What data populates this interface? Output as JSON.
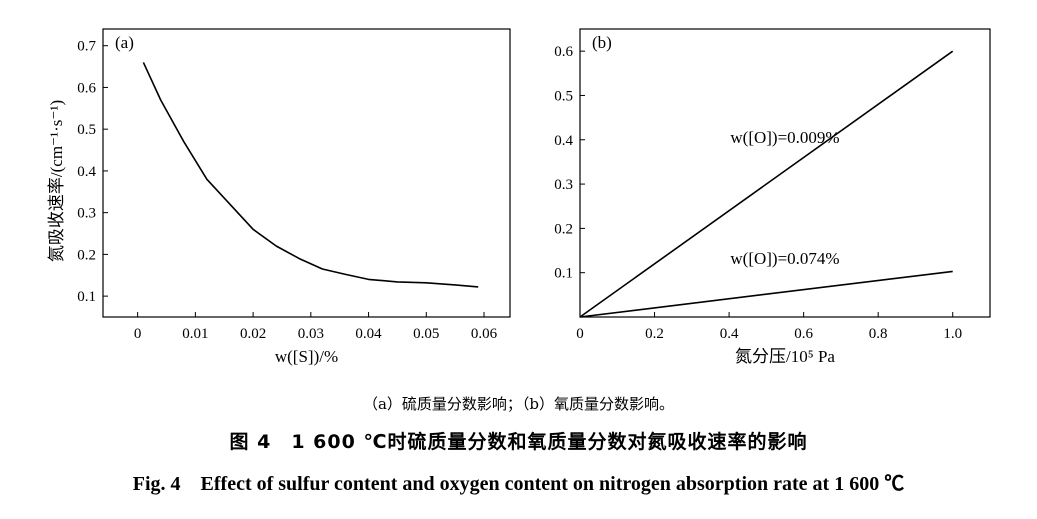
{
  "chart_data": [
    {
      "type": "line",
      "panel_label": "(a)",
      "xlabel": "w([S])/%",
      "ylabel": "氮吸收速率/(cm⁻¹·s⁻¹)",
      "xlim": [
        -0.006,
        0.0645
      ],
      "ylim": [
        0.05,
        0.74
      ],
      "xticks": [
        0,
        0.01,
        0.02,
        0.03,
        0.04,
        0.05,
        0.06
      ],
      "xtick_labels": [
        "0",
        "0.01",
        "0.02",
        "0.03",
        "0.04",
        "0.05",
        "0.06"
      ],
      "yticks": [
        0.1,
        0.2,
        0.3,
        0.4,
        0.5,
        0.6,
        0.7
      ],
      "ytick_labels": [
        "0.1",
        "0.2",
        "0.3",
        "0.4",
        "0.5",
        "0.6",
        "0.7"
      ],
      "grid": false,
      "series": [
        {
          "x": [
            0.001,
            0.004,
            0.008,
            0.012,
            0.016,
            0.02,
            0.024,
            0.028,
            0.032,
            0.036,
            0.04,
            0.045,
            0.05,
            0.055,
            0.059
          ],
          "y": [
            0.66,
            0.57,
            0.47,
            0.38,
            0.32,
            0.26,
            0.22,
            0.19,
            0.165,
            0.152,
            0.14,
            0.134,
            0.132,
            0.127,
            0.122
          ]
        }
      ]
    },
    {
      "type": "line",
      "panel_label": "(b)",
      "xlabel": "氮分压/10⁵ Pa",
      "ylabel": "",
      "xlim": [
        0,
        1.1
      ],
      "ylim": [
        0,
        0.65
      ],
      "xticks": [
        0,
        0.2,
        0.4,
        0.6,
        0.8,
        1.0
      ],
      "xtick_labels": [
        "0",
        "0.2",
        "0.4",
        "0.6",
        "0.8",
        "1.0"
      ],
      "yticks": [
        0.1,
        0.2,
        0.3,
        0.4,
        0.5,
        0.6
      ],
      "ytick_labels": [
        "0.1",
        "0.2",
        "0.3",
        "0.4",
        "0.5",
        "0.6"
      ],
      "grid": false,
      "series": [
        {
          "label": "w([O])=0.009%",
          "x": [
            0,
            1.0
          ],
          "y": [
            0,
            0.6
          ]
        },
        {
          "label": "w([O])=0.074%",
          "x": [
            0,
            1.0
          ],
          "y": [
            0,
            0.103
          ]
        }
      ]
    }
  ],
  "caption": {
    "subcaption": "（a）硫质量分数影响；（b）氧质量分数影响。",
    "title_cn": "图 4　1 600 ℃时硫质量分数和氧质量分数对氮吸收速率的影响",
    "title_en": "Fig. 4　Effect of sulfur content and oxygen content on nitrogen absorption rate at 1 600 ℃"
  },
  "colors": {
    "line": "#000000",
    "axis": "#000000",
    "background": "#ffffff"
  }
}
